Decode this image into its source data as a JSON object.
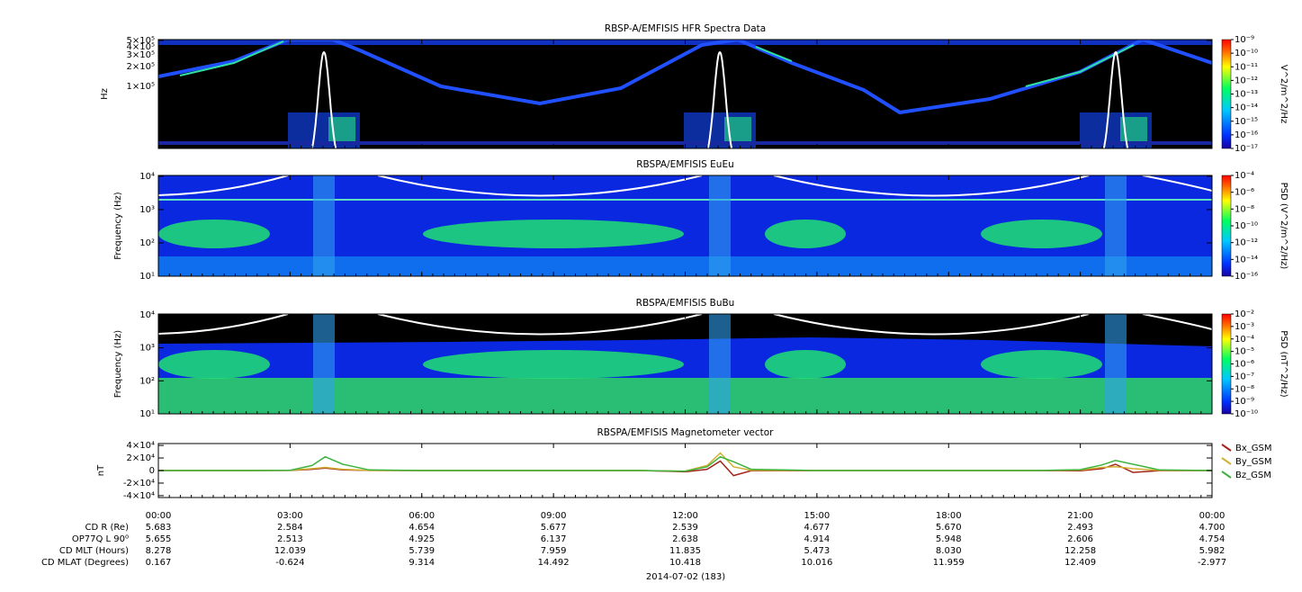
{
  "chart_data": [
    {
      "type": "spectrogram",
      "title": "RBSP-A/EMFISIS  HFR Spectra Data",
      "ylabel": "Hz",
      "log_y": true,
      "ylim": [
        11300,
        515000
      ],
      "yticks": [
        {
          "value": 500000,
          "label": "5×10⁵"
        },
        {
          "value": 400000,
          "label": "4×10⁵"
        },
        {
          "value": 300000,
          "label": "3×10⁵"
        },
        {
          "value": 200000,
          "label": "2×10⁵"
        },
        {
          "value": 100000,
          "label": "1×10⁵"
        }
      ],
      "colorbar_label": "V^2/m^2/Hz",
      "clim": [
        1e-17,
        1e-09
      ],
      "cticks": [
        {
          "value": 1e-09,
          "label": "10⁻⁹"
        },
        {
          "value": 1e-10,
          "label": "10⁻¹⁰"
        },
        {
          "value": 1e-11,
          "label": "10⁻¹¹"
        },
        {
          "value": 1e-12,
          "label": "10⁻¹²"
        },
        {
          "value": 1e-13,
          "label": "10⁻¹³"
        },
        {
          "value": 1e-14,
          "label": "10⁻¹⁴"
        },
        {
          "value": 1e-15,
          "label": "10⁻¹⁵"
        },
        {
          "value": 1e-16,
          "label": "10⁻¹⁶"
        },
        {
          "value": 1e-17,
          "label": "10⁻¹⁷"
        }
      ]
    },
    {
      "type": "spectrogram",
      "title": "RBSPA/EMFISIS  EuEu",
      "ylabel": "Frequency (Hz)",
      "log_y": true,
      "ylim": [
        10,
        10600
      ],
      "yticks": [
        {
          "value": 10,
          "label": "10¹"
        },
        {
          "value": 100,
          "label": "10²"
        },
        {
          "value": 1000,
          "label": "10³"
        },
        {
          "value": 10000,
          "label": "10⁴"
        }
      ],
      "colorbar_label": "PSD (V^2/m^2/Hz)",
      "clim": [
        1e-16,
        0.0001
      ],
      "cticks": [
        {
          "value": 0.0001,
          "label": "10⁻⁴"
        },
        {
          "value": 1e-06,
          "label": "10⁻⁶"
        },
        {
          "value": 1e-08,
          "label": "10⁻⁸"
        },
        {
          "value": 1e-10,
          "label": "10⁻¹⁰"
        },
        {
          "value": 1e-12,
          "label": "10⁻¹²"
        },
        {
          "value": 1e-14,
          "label": "10⁻¹⁴"
        },
        {
          "value": 1e-16,
          "label": "10⁻¹⁶"
        }
      ]
    },
    {
      "type": "spectrogram",
      "title": "RBSPA/EMFISIS  BuBu",
      "ylabel": "Frequency (Hz)",
      "log_y": true,
      "ylim": [
        10,
        10600
      ],
      "yticks": [
        {
          "value": 10,
          "label": "10¹"
        },
        {
          "value": 100,
          "label": "10²"
        },
        {
          "value": 1000,
          "label": "10³"
        },
        {
          "value": 10000,
          "label": "10⁴"
        }
      ],
      "colorbar_label": "PSD (nT^2/Hz)",
      "clim": [
        1e-10,
        0.01
      ],
      "cticks": [
        {
          "value": 0.01,
          "label": "10⁻²"
        },
        {
          "value": 0.001,
          "label": "10⁻³"
        },
        {
          "value": 0.0001,
          "label": "10⁻⁴"
        },
        {
          "value": 1e-05,
          "label": "10⁻⁵"
        },
        {
          "value": 1e-06,
          "label": "10⁻⁶"
        },
        {
          "value": 1e-07,
          "label": "10⁻⁷"
        },
        {
          "value": 1e-08,
          "label": "10⁻⁸"
        },
        {
          "value": 1e-09,
          "label": "10⁻⁹"
        },
        {
          "value": 1e-10,
          "label": "10⁻¹⁰"
        }
      ]
    },
    {
      "type": "line",
      "title": "RBSPA/EMFISIS  Magnetometer vector",
      "ylabel": "nT",
      "xlim": [
        0,
        24
      ],
      "xticks": [
        {
          "value": 0,
          "label": "00:00"
        },
        {
          "value": 3,
          "label": "03:00"
        },
        {
          "value": 6,
          "label": "06:00"
        },
        {
          "value": 9,
          "label": "09:00"
        },
        {
          "value": 12,
          "label": "12:00"
        },
        {
          "value": 15,
          "label": "15:00"
        },
        {
          "value": 18,
          "label": "18:00"
        },
        {
          "value": 21,
          "label": "21:00"
        },
        {
          "value": 24,
          "label": "00:00"
        }
      ],
      "ylim": [
        -43000,
        43000
      ],
      "yticks": [
        {
          "value": 40000,
          "label": "4×10⁴"
        },
        {
          "value": 20000,
          "label": "2×10⁴"
        },
        0,
        {
          "value": -20000,
          "label": "-2×10⁴"
        },
        {
          "value": -40000,
          "label": "-4×10⁴"
        }
      ],
      "x": [
        0,
        2,
        3,
        3.5,
        3.8,
        4.2,
        4.8,
        6,
        9,
        11,
        12,
        12.5,
        12.8,
        13.1,
        13.5,
        15,
        18,
        20,
        21,
        21.5,
        21.8,
        22.2,
        22.8,
        24
      ],
      "series": [
        {
          "name": "Bx_GSM",
          "color": "#a3261c",
          "values": [
            0,
            0,
            200,
            2000,
            4000,
            1000,
            100,
            0,
            0,
            0,
            -2000,
            2000,
            15000,
            -8000,
            -500,
            0,
            0,
            0,
            -500,
            3000,
            10000,
            -3000,
            -200,
            0
          ]
        },
        {
          "name": "By_GSM",
          "color": "#d2b032",
          "values": [
            0,
            0,
            300,
            3000,
            5000,
            2000,
            200,
            0,
            0,
            0,
            -1000,
            8000,
            28000,
            6000,
            500,
            0,
            0,
            0,
            800,
            5000,
            6000,
            3000,
            300,
            0
          ]
        },
        {
          "name": "Bz_GSM",
          "color": "#3cb43c",
          "values": [
            0,
            0,
            500,
            8000,
            22000,
            10000,
            1000,
            0,
            0,
            0,
            -1000,
            6000,
            22000,
            14000,
            2000,
            0,
            0,
            0,
            1500,
            9000,
            16000,
            10000,
            1000,
            0
          ]
        }
      ]
    }
  ],
  "ephemeris": {
    "rows": [
      {
        "label": "CD R (Re)",
        "values": [
          "5.683",
          "2.584",
          "4.654",
          "5.677",
          "2.539",
          "4.677",
          "5.670",
          "2.493",
          "4.700"
        ]
      },
      {
        "label": "OP77Q L 90⁰",
        "values": [
          "5.655",
          "2.513",
          "4.925",
          "6.137",
          "2.638",
          "4.914",
          "5.948",
          "2.606",
          "4.754"
        ]
      },
      {
        "label": "CD MLT (Hours)",
        "values": [
          "8.278",
          "12.039",
          "5.739",
          "7.959",
          "11.835",
          "5.473",
          "8.030",
          "12.258",
          "5.982"
        ]
      },
      {
        "label": "CD MLAT (Degrees)",
        "values": [
          "0.167",
          "-0.624",
          "9.314",
          "14.492",
          "10.418",
          "10.016",
          "11.959",
          "12.409",
          "-2.977"
        ]
      }
    ],
    "date": "2014-07-02 (183)"
  }
}
